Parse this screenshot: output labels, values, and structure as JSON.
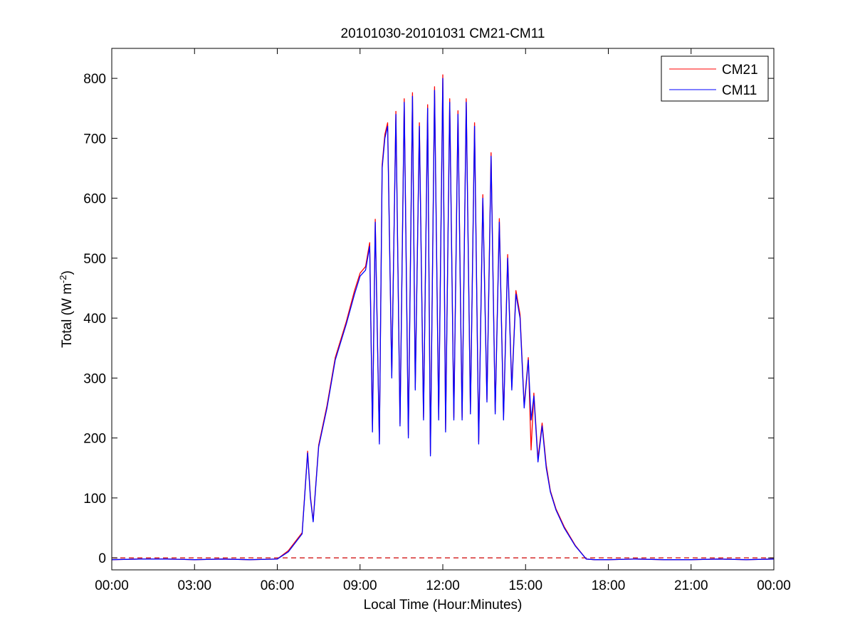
{
  "chart_data": {
    "type": "line",
    "title": "20101030-20101031 CM21-CM11",
    "xlabel": "Local Time (Hour:Minutes)",
    "ylabel_main": "Total (W m",
    "ylabel_sup": "-2",
    "ylabel_close": ")",
    "xlim": [
      0,
      24
    ],
    "ylim": [
      -20,
      850
    ],
    "xticks": [
      0,
      3,
      6,
      9,
      12,
      15,
      18,
      21,
      24
    ],
    "xtick_labels": [
      "00:00",
      "03:00",
      "06:00",
      "09:00",
      "12:00",
      "15:00",
      "18:00",
      "21:00",
      "00:00"
    ],
    "yticks": [
      0,
      100,
      200,
      300,
      400,
      500,
      600,
      700,
      800
    ],
    "ytick_labels": [
      "0",
      "100",
      "200",
      "300",
      "400",
      "500",
      "600",
      "700",
      "800"
    ],
    "grid": false,
    "legend_position": "top-right",
    "reference_line": {
      "y": 0,
      "style": "dashed",
      "color": "#cc0000"
    },
    "series": [
      {
        "name": "CM21",
        "color": "#ff0000"
      },
      {
        "name": "CM11",
        "color": "#0000ff"
      }
    ],
    "x": [
      0,
      1,
      2,
      3,
      4,
      5,
      6,
      6.4,
      6.9,
      7.1,
      7.2,
      7.3,
      7.5,
      7.8,
      8.1,
      8.5,
      8.8,
      9.0,
      9.2,
      9.35,
      9.45,
      9.55,
      9.7,
      9.8,
      9.9,
      10.0,
      10.15,
      10.3,
      10.45,
      10.6,
      10.75,
      10.9,
      11.0,
      11.15,
      11.3,
      11.45,
      11.55,
      11.7,
      11.85,
      12.0,
      12.1,
      12.25,
      12.4,
      12.55,
      12.7,
      12.85,
      13.0,
      13.15,
      13.3,
      13.45,
      13.6,
      13.75,
      13.9,
      14.05,
      14.2,
      14.35,
      14.5,
      14.65,
      14.8,
      14.95,
      15.1,
      15.2,
      15.3,
      15.45,
      15.6,
      15.75,
      15.9,
      16.1,
      16.4,
      16.8,
      17.2,
      17.5,
      18.0,
      19.0,
      20.0,
      21.0,
      22.0,
      23.0,
      24.0
    ],
    "values_cm11": [
      -3,
      -2,
      -2,
      -3,
      -2,
      -3,
      -2,
      10,
      40,
      175,
      100,
      60,
      185,
      250,
      330,
      390,
      440,
      470,
      480,
      520,
      210,
      560,
      190,
      650,
      700,
      720,
      300,
      740,
      220,
      760,
      200,
      770,
      280,
      720,
      230,
      750,
      170,
      780,
      230,
      800,
      210,
      760,
      230,
      740,
      230,
      760,
      240,
      720,
      190,
      600,
      260,
      670,
      240,
      560,
      230,
      500,
      280,
      440,
      400,
      250,
      330,
      230,
      270,
      160,
      220,
      150,
      110,
      80,
      50,
      20,
      -2,
      -3,
      -3,
      -2,
      -3,
      -3,
      -2,
      -3,
      -2
    ],
    "values_cm21": [
      -3,
      -2,
      -2,
      -3,
      -2,
      -3,
      -2,
      12,
      42,
      178,
      103,
      62,
      188,
      254,
      334,
      394,
      446,
      475,
      486,
      526,
      214,
      565,
      194,
      656,
      706,
      726,
      304,
      745,
      224,
      766,
      205,
      776,
      284,
      726,
      234,
      756,
      174,
      786,
      234,
      806,
      214,
      766,
      234,
      746,
      234,
      766,
      244,
      726,
      194,
      606,
      264,
      676,
      244,
      566,
      234,
      506,
      284,
      446,
      406,
      254,
      334,
      180,
      275,
      165,
      225,
      155,
      112,
      82,
      52,
      21,
      -2,
      -3,
      -3,
      -2,
      -3,
      -3,
      -2,
      -3,
      -2
    ]
  }
}
